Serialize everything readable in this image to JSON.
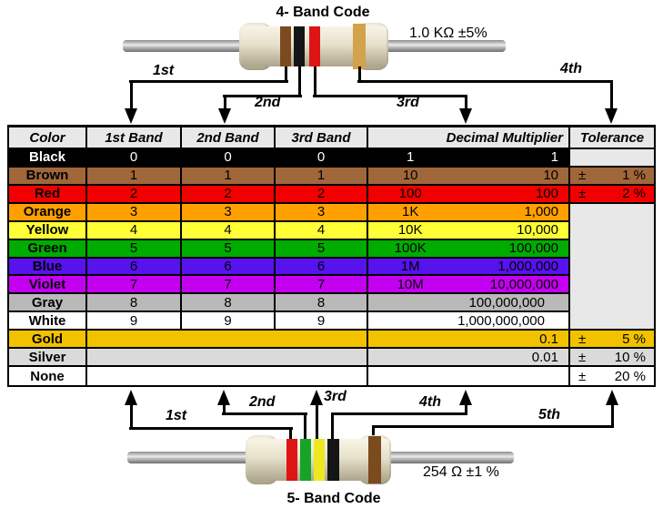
{
  "four_band": {
    "title": "4- Band Code",
    "value": "1.0 KΩ  ±5%",
    "bands": [
      {
        "name": "brown",
        "hex": "#7B4A1E"
      },
      {
        "name": "black",
        "hex": "#151515"
      },
      {
        "name": "red",
        "hex": "#DD1515"
      },
      {
        "name": "gold",
        "hex": "#D2A24C"
      }
    ],
    "arrow_labels": [
      "1st",
      "2nd",
      "3rd",
      "4th"
    ]
  },
  "five_band": {
    "title": "5- Band Code",
    "value": "254 Ω  ±1 %",
    "bands": [
      {
        "name": "red",
        "hex": "#DD1515"
      },
      {
        "name": "green",
        "hex": "#18A228"
      },
      {
        "name": "yellow",
        "hex": "#EEE820"
      },
      {
        "name": "black",
        "hex": "#151515"
      },
      {
        "name": "brown",
        "hex": "#7B4A1E"
      }
    ],
    "arrow_labels": [
      "1st",
      "2nd",
      "3rd",
      "4th",
      "5th"
    ]
  },
  "table": {
    "headers": [
      "Color",
      "1st Band",
      "2nd Band",
      "3rd Band",
      "Decimal Multiplier",
      "Tolerance"
    ],
    "plus_minus": "±",
    "header_bg": "#E8E8E8",
    "empty_cell_bg": "#E8E8E8",
    "rows": [
      {
        "color": "Black",
        "hex": "#000000",
        "text_hex": "#FFFFFF",
        "band1": "0",
        "band2": "0",
        "band3": "0",
        "multiplier_short": "1",
        "multiplier_full": "1",
        "tolerance": ""
      },
      {
        "color": "Brown",
        "hex": "#A0673B",
        "text_hex": "#000000",
        "band1": "1",
        "band2": "1",
        "band3": "1",
        "multiplier_short": "10",
        "multiplier_full": "10",
        "tolerance": "1 %"
      },
      {
        "color": "Red",
        "hex": "#F20000",
        "text_hex": "#000000",
        "band1": "2",
        "band2": "2",
        "band3": "2",
        "multiplier_short": "100",
        "multiplier_full": "100",
        "tolerance": "2 %"
      },
      {
        "color": "Orange",
        "hex": "#FFA000",
        "text_hex": "#000000",
        "band1": "3",
        "band2": "3",
        "band3": "3",
        "multiplier_short": "1K",
        "multiplier_full": "1,000",
        "tolerance": ""
      },
      {
        "color": "Yellow",
        "hex": "#FFFF38",
        "text_hex": "#000000",
        "band1": "4",
        "band2": "4",
        "band3": "4",
        "multiplier_short": "10K",
        "multiplier_full": "10,000",
        "tolerance": ""
      },
      {
        "color": "Green",
        "hex": "#00AC00",
        "text_hex": "#000000",
        "band1": "5",
        "band2": "5",
        "band3": "5",
        "multiplier_short": "100K",
        "multiplier_full": "100,000",
        "tolerance": ""
      },
      {
        "color": "Blue",
        "hex": "#5712EE",
        "text_hex": "#000000",
        "band1": "6",
        "band2": "6",
        "band3": "6",
        "multiplier_short": "1M",
        "multiplier_full": "1,000,000",
        "tolerance": ""
      },
      {
        "color": "Violet",
        "hex": "#C400F0",
        "text_hex": "#000000",
        "band1": "7",
        "band2": "7",
        "band3": "7",
        "multiplier_short": "10M",
        "multiplier_full": "10,000,000",
        "tolerance": ""
      },
      {
        "color": "Gray",
        "hex": "#B9B9B9",
        "text_hex": "#000000",
        "band1": "8",
        "band2": "8",
        "band3": "8",
        "multiplier_short": "",
        "multiplier_full": "100,000,000",
        "tolerance": ""
      },
      {
        "color": "White",
        "hex": "#FFFFFF",
        "text_hex": "#000000",
        "band1": "9",
        "band2": "9",
        "band3": "9",
        "multiplier_short": "",
        "multiplier_full": "1,000,000,000",
        "tolerance": ""
      },
      {
        "color": "Gold",
        "hex": "#F2C200",
        "text_hex": "#000000",
        "band1": "",
        "band2": "",
        "band3": "",
        "multiplier_short": "",
        "multiplier_full": "0.1",
        "tolerance": "5 %"
      },
      {
        "color": "Silver",
        "hex": "#DADADA",
        "text_hex": "#000000",
        "band1": "",
        "band2": "",
        "band3": "",
        "multiplier_short": "",
        "multiplier_full": "0.01",
        "tolerance": "10 %"
      },
      {
        "color": "None",
        "hex": "#FFFFFF",
        "text_hex": "#000000",
        "band1": "",
        "band2": "",
        "band3": "",
        "multiplier_short": "",
        "multiplier_full": "",
        "tolerance": "20 %"
      }
    ]
  }
}
